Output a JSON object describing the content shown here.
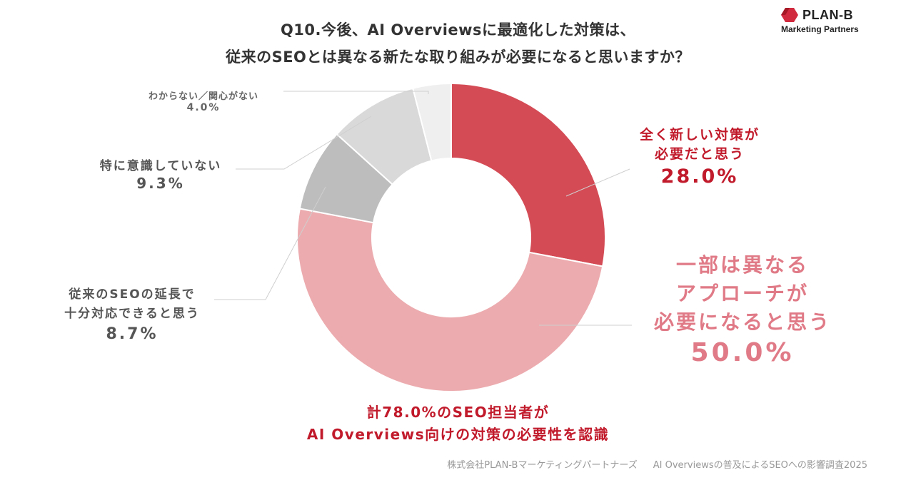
{
  "title": {
    "line1": "Q10.今後、AI Overviewsに最適化した対策は、",
    "line2": "従来のSEOとは異なる新たな取り組みが必要になると思いますか？"
  },
  "brand": {
    "name": "PLAN-B",
    "sub": "Marketing Partners",
    "color": "#d1293d"
  },
  "chart_data": {
    "type": "pie",
    "donut": true,
    "start": "12 o'clock",
    "direction": "clockwise",
    "slices": [
      {
        "label": "全く新しい対策が必要だと思う",
        "lines": [
          "全く新しい対策が",
          "必要だと思う"
        ],
        "value": 28.0,
        "display": "28.0%",
        "color": "#d44b55"
      },
      {
        "label": "一部は異なるアプローチが必要になると思う",
        "lines": [
          "一部は異なる",
          "アプローチが",
          "必要になると思う"
        ],
        "value": 50.0,
        "display": "50.0%",
        "color": "#ecabae"
      },
      {
        "label": "従来のSEOの延長で十分対応できると思う",
        "lines": [
          "従来のSEOの延長で",
          "十分対応できると思う"
        ],
        "value": 8.7,
        "display": "8.7%",
        "color": "#bdbdbd"
      },
      {
        "label": "特に意識していない",
        "lines": [
          "特に意識していない"
        ],
        "value": 9.3,
        "display": "9.3%",
        "color": "#d9d9d9"
      },
      {
        "label": "わからない／関心がない",
        "lines": [
          "わからない／関心がない"
        ],
        "value": 4.0,
        "display": "4.0%",
        "color": "#efefef"
      }
    ]
  },
  "callout": {
    "line1": "計78.0%のSEO担当者が",
    "line2": "AI Overviews向けの対策の必要性を認識"
  },
  "footer": {
    "company": "株式会社PLAN-Bマーケティングパートナーズ",
    "survey": "AI Overviewsの普及によるSEOへの影響調査2025"
  }
}
